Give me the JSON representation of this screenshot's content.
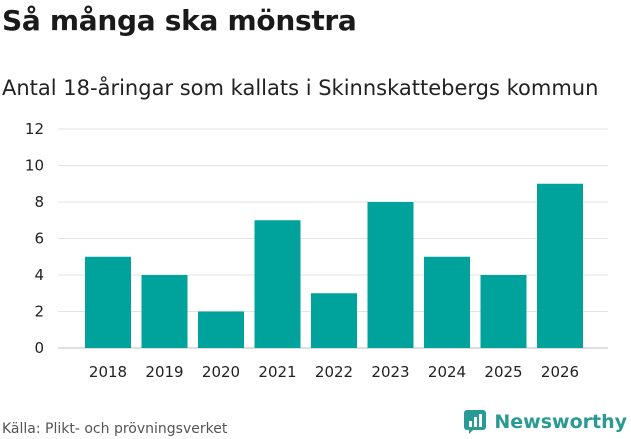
{
  "header": {
    "title": "Så många ska mönstra",
    "subtitle": "Antal 18-åringar som kallats i Skinnskattebergs kommun"
  },
  "footer": {
    "source": "Källa: Plikt- och prövningsverket",
    "brand": "Newsworthy"
  },
  "colors": {
    "bar": "#00a39b",
    "grid": "#e3e3e3",
    "brand": "#2a9a94"
  },
  "chart_data": {
    "type": "bar",
    "title": "Så många ska mönstra",
    "subtitle": "Antal 18-åringar som kallats i Skinnskattebergs kommun",
    "categories": [
      "2018",
      "2019",
      "2020",
      "2021",
      "2022",
      "2023",
      "2024",
      "2025",
      "2026"
    ],
    "values": [
      5,
      4,
      2,
      7,
      3,
      8,
      5,
      4,
      9
    ],
    "ylim": [
      0,
      12
    ],
    "yticks": [
      0,
      2,
      4,
      6,
      8,
      10,
      12
    ],
    "xlabel": "",
    "ylabel": "",
    "grid": true
  }
}
